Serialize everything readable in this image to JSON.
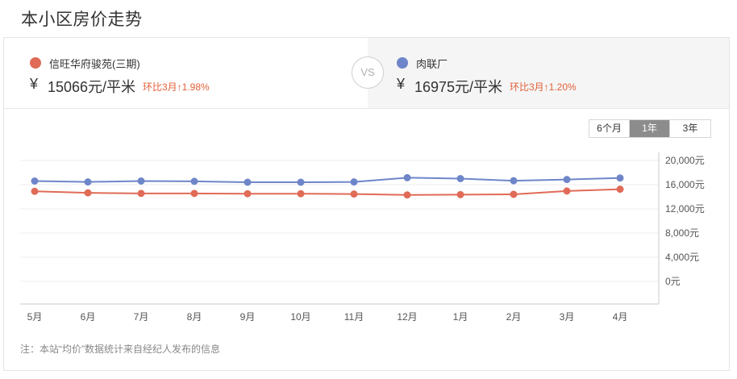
{
  "page": {
    "title": "本小区房价走势"
  },
  "compare": {
    "left": {
      "name": "信旺华府骏苑(三期)",
      "currency": "¥",
      "price": "15066元/平米",
      "change": "环比3月↑1.98%",
      "color": "#e06b57"
    },
    "vs": "VS",
    "right": {
      "name": "肉联厂",
      "currency": "¥",
      "price": "16975元/平米",
      "change": "环比3月↑1.20%",
      "color": "#6e86c9"
    }
  },
  "range_buttons": [
    {
      "label": "6个月",
      "active": false
    },
    {
      "label": "1年",
      "active": true
    },
    {
      "label": "3年",
      "active": false
    }
  ],
  "chart_data": {
    "type": "line",
    "categories": [
      "5月",
      "6月",
      "7月",
      "8月",
      "9月",
      "10月",
      "11月",
      "12月",
      "1月",
      "2月",
      "3月",
      "4月"
    ],
    "series": [
      {
        "name": "肉联厂",
        "color": "#6e86c9",
        "values": [
          16600,
          16450,
          16600,
          16550,
          16400,
          16400,
          16450,
          17150,
          17000,
          16650,
          16850,
          17100
        ]
      },
      {
        "name": "信旺华府骏苑(三期)",
        "color": "#e06b57",
        "values": [
          14900,
          14650,
          14550,
          14550,
          14500,
          14500,
          14450,
          14300,
          14350,
          14400,
          14950,
          15250
        ]
      }
    ],
    "y_ticks": [
      "20,000元",
      "16,000元",
      "12,000元",
      "8,000元",
      "4,000元",
      "0元"
    ],
    "ylim": [
      0,
      20000
    ],
    "y_axis_position": "right",
    "grid": true
  },
  "note": "注：本站“均价”数据统计来自经纪人发布的信息"
}
